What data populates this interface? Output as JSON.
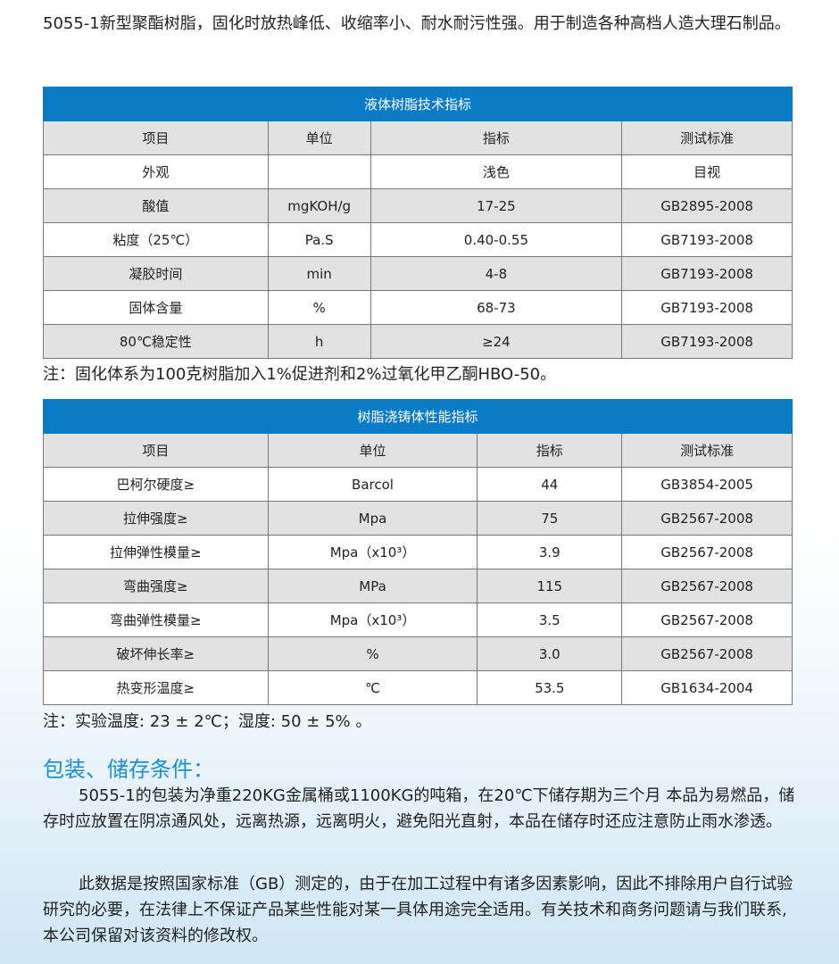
{
  "intro": "5055-1新型聚酯树脂，固化时放热峰低、收缩率小、耐水耐污性强。用于制造各种高档人造大理石制品。",
  "table1": {
    "title": "液体树脂技术指标",
    "headers": [
      "项目",
      "单位",
      "指标",
      "测试标准"
    ],
    "rows": [
      [
        "外观",
        "",
        "浅色",
        "目视"
      ],
      [
        "酸值",
        "mgKOH/g",
        "17-25",
        "GB2895-2008"
      ],
      [
        "粘度（25℃）",
        "Pa.S",
        "0.40-0.55",
        "GB7193-2008"
      ],
      [
        "凝胶时间",
        "min",
        "4-8",
        "GB7193-2008"
      ],
      [
        "固体含量",
        "%",
        "68-73",
        "GB7193-2008"
      ],
      [
        "80℃稳定性",
        "h",
        "≥24",
        "GB7193-2008"
      ]
    ]
  },
  "note1": "注：固化体系为100克树脂加入1%促进剂和2%过氧化甲乙酮HBO-50。",
  "table2": {
    "title": "树脂浇铸体性能指标",
    "headers": [
      "项目",
      "单位",
      "指标",
      "测试标准"
    ],
    "rows": [
      [
        "巴柯尔硬度≥",
        "Barcol",
        "44",
        "GB3854-2005"
      ],
      [
        "拉伸强度≥",
        "Mpa",
        "75",
        "GB2567-2008"
      ],
      [
        "拉伸弹性模量≥",
        "Mpa（x10³）",
        "3.9",
        "GB2567-2008"
      ],
      [
        "弯曲强度≥",
        "MPa",
        "115",
        "GB2567-2008"
      ],
      [
        "弯曲弹性模量≥",
        "Mpa（x10³）",
        "3.5",
        "GB2567-2008"
      ],
      [
        "破坏伸长率≥",
        "%",
        "3.0",
        "GB2567-2008"
      ],
      [
        "热变形温度≥",
        "℃",
        "53.5",
        "GB1634-2004"
      ]
    ]
  },
  "note2": "注：实验温度: 23 ± 2℃；湿度: 50 ± 5% 。",
  "section_title": "包装、储存条件：",
  "para1": "5055-1的包装为净重220KG金属桶或1100KG的吨箱，在20℃下储存期为三个月 本品为易燃品，储存时应放置在阴凉通风处，远离热源，远离明火，避免阳光直射，本品在储存时还应注意防止雨水渗透。",
  "para2": "此数据是按照国家标准（GB）测定的，由于在加工过程中有诸多因素影响，因此不排除用户自行试验研究的必要，在法律上不保证产品某些性能对某一具体用途完全适用。有关技术和商务问题请与我们联系,本公司保留对该资料的修改权。",
  "colors": {
    "header": "#0a7bc4",
    "accent": "#1b8fd6",
    "row_alt": "#e2e2e2"
  }
}
